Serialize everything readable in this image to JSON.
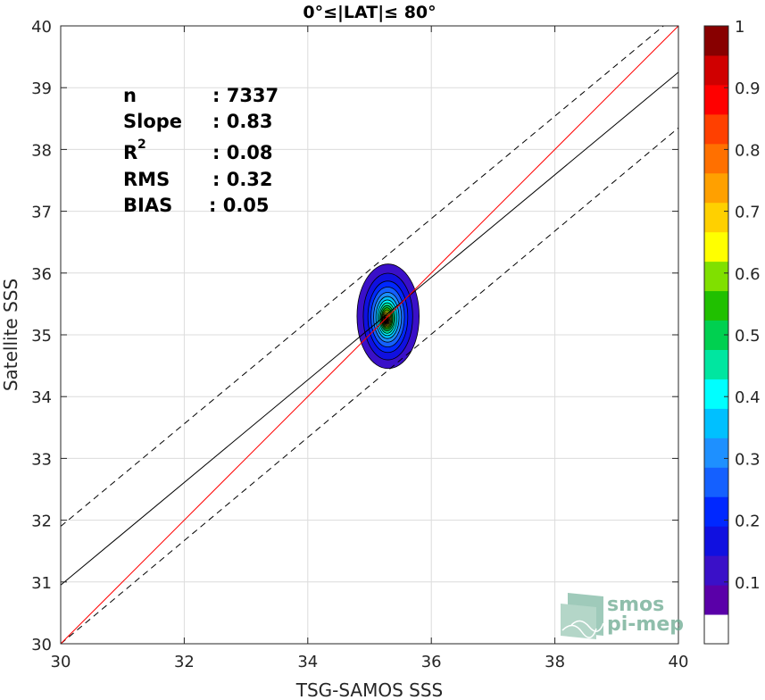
{
  "chart_data": {
    "type": "contour-density-scatter",
    "title": "0°≤|LAT|≤ 80°",
    "xlabel": "TSG-SAMOS SSS",
    "ylabel": "Satellite SSS",
    "xlim": [
      30,
      40
    ],
    "ylim": [
      30,
      40
    ],
    "xticks": [
      "30",
      "32",
      "34",
      "36",
      "38",
      "40"
    ],
    "yticks": [
      "30",
      "31",
      "32",
      "33",
      "34",
      "35",
      "36",
      "37",
      "38",
      "39",
      "40"
    ],
    "grid": true,
    "stats": {
      "n_label": "n",
      "n_value": ": 7337",
      "slope_label": "Slope",
      "slope_value": ": 0.83",
      "r2_label": "R",
      "r2_sup": "2",
      "r2_value": ": 0.08",
      "rms_label": "RMS",
      "rms_value": ": 0.32",
      "bias_label": "BIAS",
      "bias_value": ": 0.05"
    },
    "lines": {
      "one_to_one": {
        "x": [
          30,
          40
        ],
        "y": [
          30,
          40
        ],
        "color": "#ff0000"
      },
      "regression": {
        "x": [
          30,
          40
        ],
        "y": [
          30.95,
          39.25
        ],
        "color": "#000000"
      },
      "upper_bound": {
        "x": [
          30,
          40
        ],
        "y": [
          31.9,
          40.2
        ],
        "color": "#000000",
        "style": "dashed"
      },
      "lower_bound": {
        "x": [
          30,
          40
        ],
        "y": [
          30.0,
          38.35
        ],
        "color": "#000000",
        "style": "dashed"
      }
    },
    "density_contours": {
      "center": [
        35.3,
        35.3
      ],
      "levels": [
        0.05,
        0.1,
        0.15,
        0.2,
        0.25,
        0.3,
        0.35,
        0.4,
        0.45,
        0.5,
        0.55,
        0.6,
        0.65,
        0.7,
        0.75,
        0.8,
        0.85,
        0.9,
        0.95
      ],
      "rx": [
        0.78,
        0.62,
        0.5,
        0.42,
        0.35,
        0.29,
        0.24,
        0.2,
        0.17,
        0.14,
        0.12,
        0.1,
        0.08,
        0.065,
        0.05,
        0.04,
        0.03,
        0.02,
        0.012
      ],
      "ry": [
        0.82,
        0.68,
        0.56,
        0.47,
        0.39,
        0.33,
        0.28,
        0.24,
        0.2,
        0.17,
        0.14,
        0.12,
        0.1,
        0.08,
        0.065,
        0.05,
        0.04,
        0.03,
        0.02
      ]
    },
    "colorbar": {
      "labels": [
        "0.1",
        "0.2",
        "0.3",
        "0.4",
        "0.5",
        "0.6",
        "0.7",
        "0.8",
        "0.9",
        "1"
      ],
      "label_values": [
        0.1,
        0.2,
        0.3,
        0.4,
        0.5,
        0.6,
        0.7,
        0.8,
        0.9,
        1.0
      ],
      "range": [
        0,
        1
      ],
      "colors": [
        "#ffffff",
        "#5a00a8",
        "#3a10c8",
        "#1010e0",
        "#0028ff",
        "#1460ff",
        "#1e90ff",
        "#00c0ff",
        "#00ffff",
        "#00e6a0",
        "#00d050",
        "#20c000",
        "#80e000",
        "#ffff00",
        "#ffd000",
        "#ffa000",
        "#ff7000",
        "#ff4000",
        "#ff0000",
        "#d00000",
        "#880000"
      ]
    },
    "watermark": {
      "line1": "smos",
      "line2": "pi-mep"
    }
  }
}
